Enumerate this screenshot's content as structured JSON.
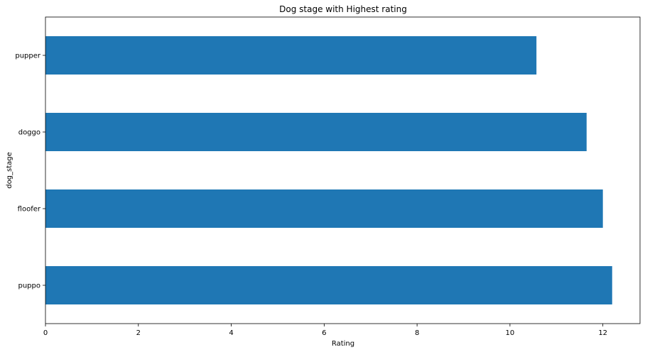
{
  "chart_data": {
    "type": "bar",
    "orientation": "horizontal",
    "title": "Dog stage with Highest rating",
    "xlabel": "Rating",
    "ylabel": "dog_stage",
    "categories": [
      "puppo",
      "floofer",
      "doggo",
      "pupper"
    ],
    "values": [
      12.2,
      12.0,
      11.65,
      10.57
    ],
    "xlim": [
      0,
      12.8
    ],
    "xticks": [
      0,
      2,
      4,
      6,
      8,
      10,
      12
    ],
    "grid": false,
    "legend": "none",
    "bar_color": "#1f77b4"
  }
}
